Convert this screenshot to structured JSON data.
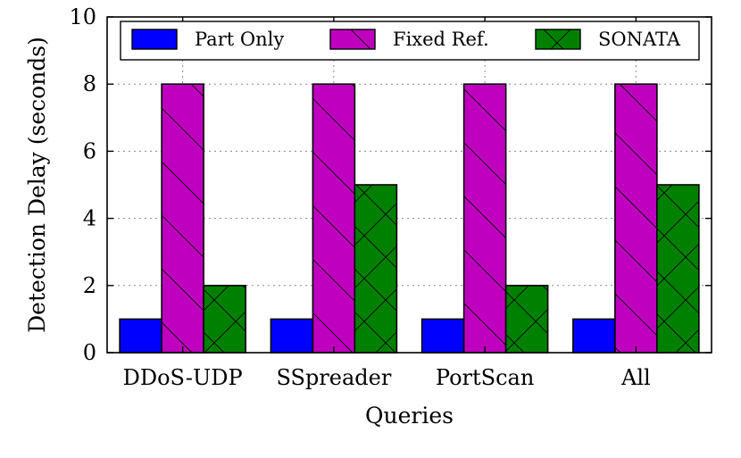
{
  "chart_data": {
    "type": "bar",
    "title": "",
    "xlabel": "Queries",
    "ylabel": "Detection Delay (seconds)",
    "ylim": [
      0,
      10
    ],
    "yticks": [
      0,
      2,
      4,
      6,
      8,
      10
    ],
    "categories": [
      "DDoS-UDP",
      "SSpreader",
      "PortScan",
      "All"
    ],
    "series": [
      {
        "name": "Part Only",
        "values": [
          1,
          1,
          1,
          1
        ],
        "color": "#0000ff",
        "pattern": "none"
      },
      {
        "name": "Fixed Ref.",
        "values": [
          8,
          8,
          8,
          8
        ],
        "color": "#bf00bf",
        "pattern": "single-diagonal"
      },
      {
        "name": "SONATA",
        "values": [
          2,
          5,
          2,
          5
        ],
        "color": "#008000",
        "pattern": "cross-diagonal"
      }
    ],
    "grid": true,
    "legend_position": "top"
  }
}
